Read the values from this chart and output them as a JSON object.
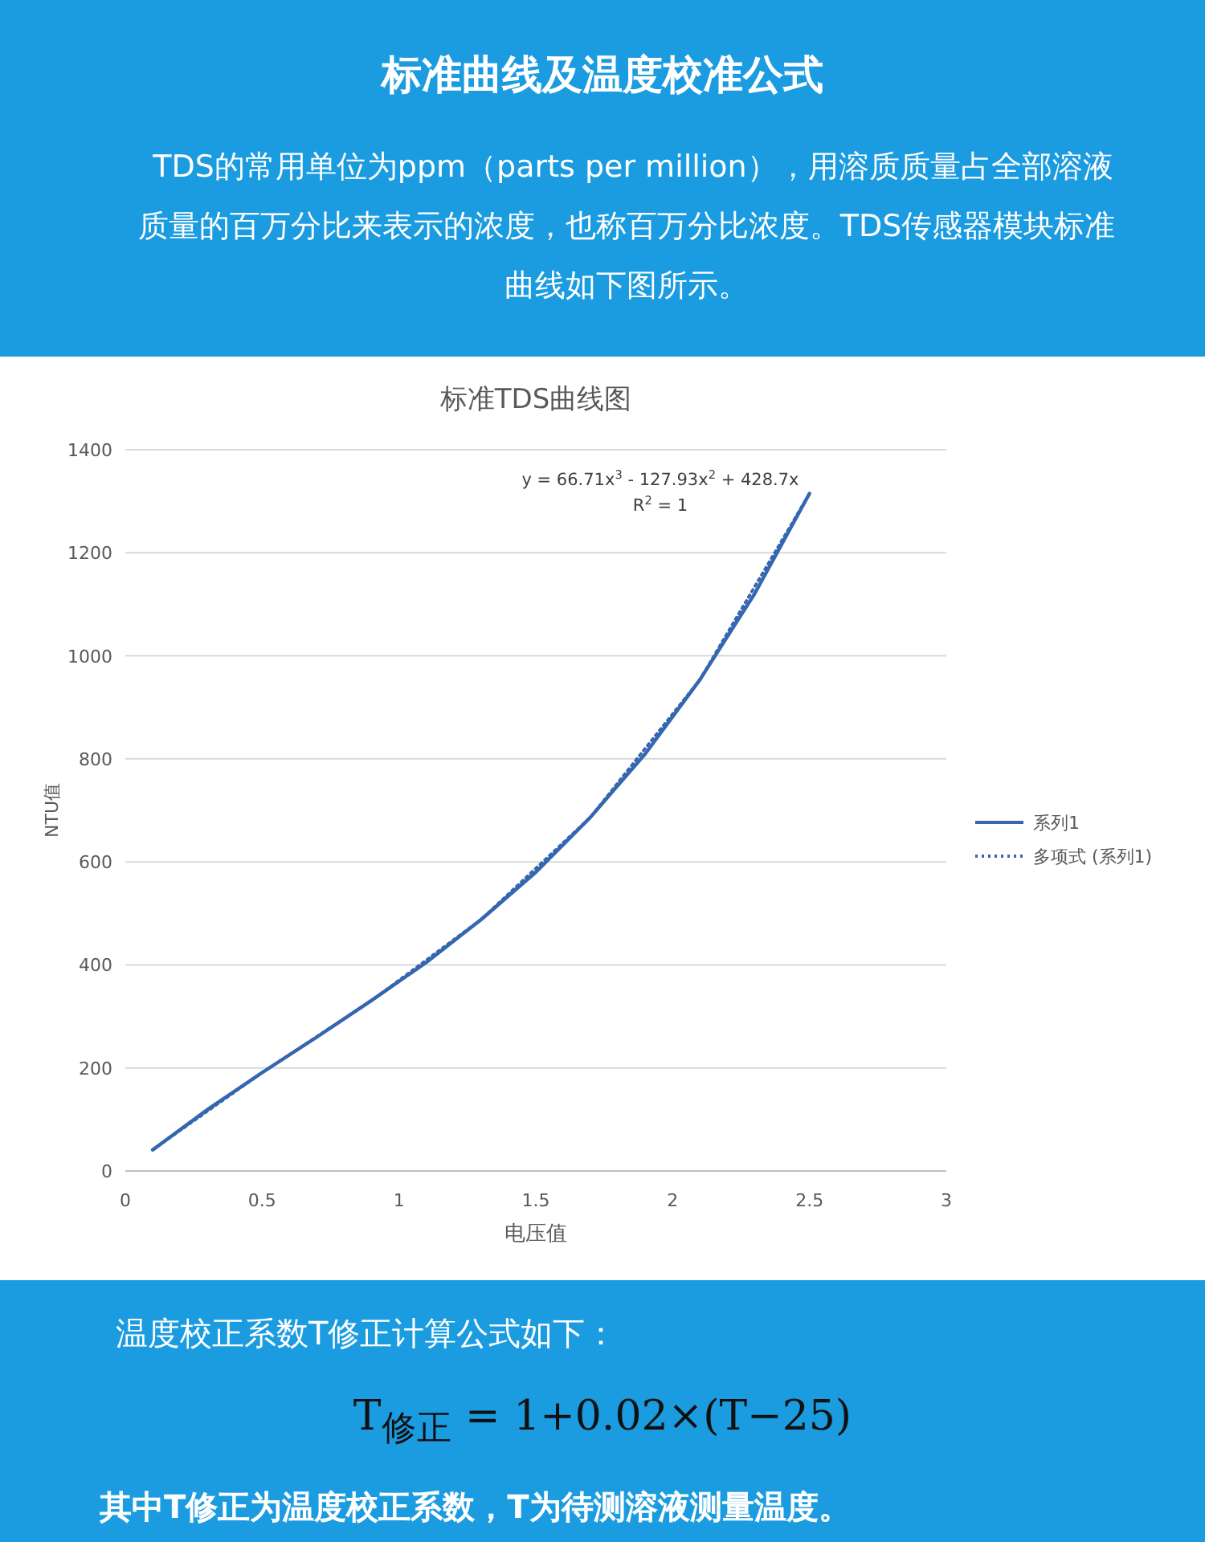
{
  "chart_data": {
    "type": "line",
    "title": "标准TDS曲线图",
    "xlabel": "电压值",
    "ylabel": "NTU值",
    "annotations": [
      "标准曲线及温度校准公式",
      "TDS的常用单位为ppm（parts per million），用溶质质量占全部溶液质量的百万分比来表示的浓度，也称百万分比浓度。TDS传感器模块标准曲线如下图所示。",
      "y = 66.71x$^{3}$ - 127.93x$^{2}$ + 428.7x",
      "R$^{2}$ = 1",
      "温度校正系数T修正计算公式如下：",
      "T$_{修正}$ = 1+0.02×(T−25)",
      "其中T修正为温度校正系数，T为待测溶液测量温度。"
    ],
    "series": [
      {
        "name": "系列1",
        "color": "#3566b0",
        "line_style": "solid",
        "x": [
          0.1,
          0.3,
          0.5,
          0.7,
          0.9,
          1.1,
          1.3,
          1.5,
          1.7,
          1.9,
          2.1,
          2.3,
          2.5
        ],
        "values": [
          41,
          119,
          191,
          260,
          331,
          405,
          488,
          580,
          687,
          810,
          954,
          1121,
          1315
        ]
      },
      {
        "name": "多项式 (系列1)",
        "color": "#3566b0",
        "line_style": "dotted",
        "x": [
          0.1,
          0.5,
          0.9,
          1.3,
          1.7,
          2.1,
          2.5
        ],
        "values": [
          41,
          191,
          331,
          488,
          687,
          954,
          1315
        ]
      }
    ],
    "xlim": [
      0,
      3
    ],
    "xticks": [
      0,
      0.5,
      1,
      1.5,
      2,
      2.5,
      3
    ],
    "ylim": [
      0,
      1400
    ],
    "yticks": [
      0,
      200,
      400,
      600,
      800,
      1000,
      1200,
      1400
    ],
    "grid": "y",
    "legend": "right",
    "marker": "none"
  }
}
